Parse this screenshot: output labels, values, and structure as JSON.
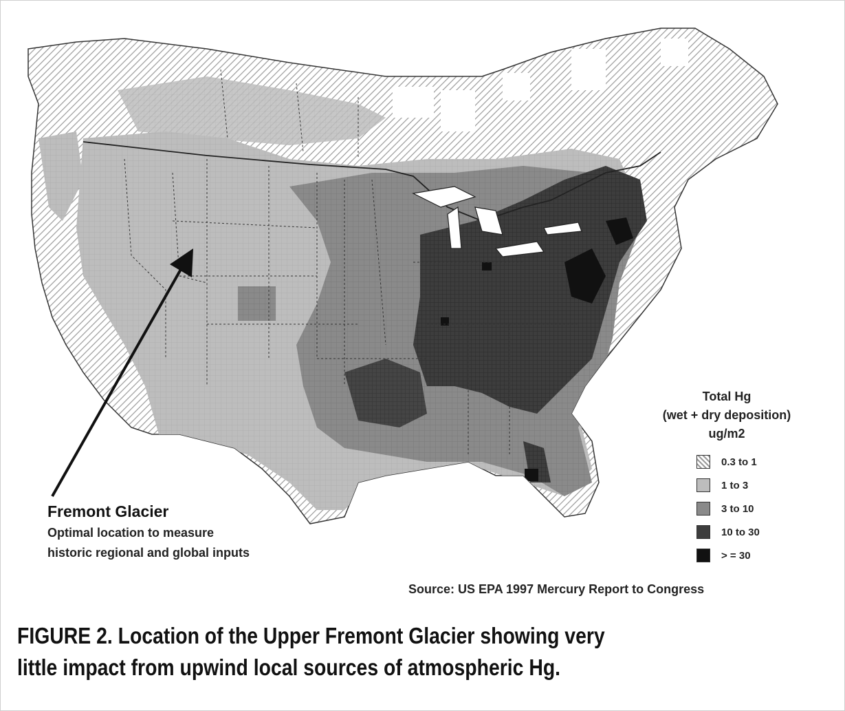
{
  "annotation": {
    "title": "Fremont Glacier",
    "lines": [
      "Optimal location to measure",
      "historic regional and global inputs"
    ]
  },
  "legend": {
    "title_lines": [
      "Total Hg",
      "(wet + dry deposition)",
      "ug/m2"
    ],
    "items": [
      {
        "label": "0.3 to 1",
        "pattern": "hatch-light"
      },
      {
        "label": "1 to 3",
        "pattern": "light-gray"
      },
      {
        "label": "3 to 10",
        "pattern": "mid-gray"
      },
      {
        "label": "10 to 30",
        "pattern": "dark-gray"
      },
      {
        "label": "> = 30",
        "pattern": "black"
      }
    ]
  },
  "source": "Source: US EPA 1997 Mercury Report to Congress",
  "caption": {
    "line1": "FIGURE 2.  Location of the Upper Fremont Glacier showing very",
    "line2": "little impact from upwind local sources of atmospheric Hg."
  },
  "colors": {
    "level_light": "#bdbdbd",
    "level_mid": "#8a8a8a",
    "level_dark": "#3d3d3d",
    "level_black": "#111111",
    "hatch": "#9a9a9a"
  }
}
